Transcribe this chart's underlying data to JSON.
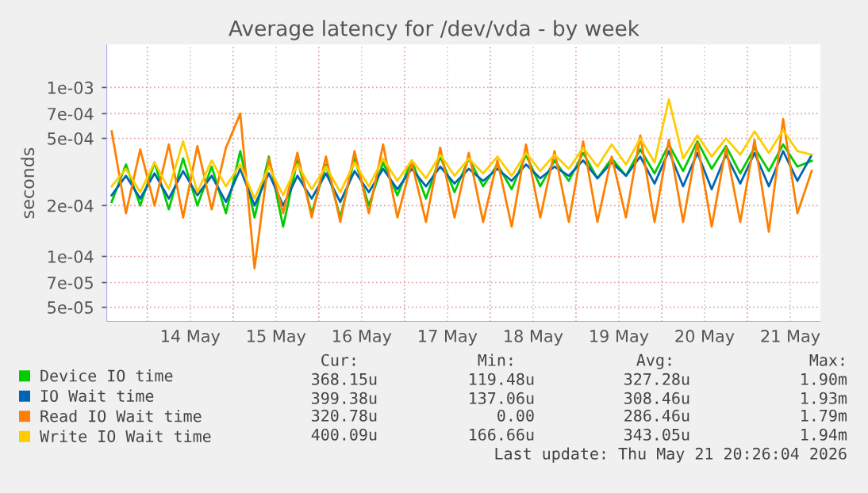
{
  "chart_data": {
    "type": "line",
    "title": "Average latency for /dev/vda - by week",
    "ylabel": "seconds",
    "x": [
      "2026-05-13T14:00",
      "2026-05-13T18:00",
      "2026-05-13T22:00",
      "2026-05-14T02:00",
      "2026-05-14T06:00",
      "2026-05-14T10:00",
      "2026-05-14T14:00",
      "2026-05-14T18:00",
      "2026-05-14T22:00",
      "2026-05-15T02:00",
      "2026-05-15T06:00",
      "2026-05-15T10:00",
      "2026-05-15T14:00",
      "2026-05-15T18:00",
      "2026-05-15T22:00",
      "2026-05-16T02:00",
      "2026-05-16T06:00",
      "2026-05-16T10:00",
      "2026-05-16T14:00",
      "2026-05-16T18:00",
      "2026-05-16T22:00",
      "2026-05-17T02:00",
      "2026-05-17T06:00",
      "2026-05-17T10:00",
      "2026-05-17T14:00",
      "2026-05-17T18:00",
      "2026-05-17T22:00",
      "2026-05-18T02:00",
      "2026-05-18T06:00",
      "2026-05-18T10:00",
      "2026-05-18T14:00",
      "2026-05-18T18:00",
      "2026-05-18T22:00",
      "2026-05-19T02:00",
      "2026-05-19T06:00",
      "2026-05-19T10:00",
      "2026-05-19T14:00",
      "2026-05-19T18:00",
      "2026-05-19T22:00",
      "2026-05-20T02:00",
      "2026-05-20T06:00",
      "2026-05-20T10:00",
      "2026-05-20T14:00",
      "2026-05-20T18:00",
      "2026-05-20T22:00",
      "2026-05-21T02:00",
      "2026-05-21T06:00",
      "2026-05-21T10:00",
      "2026-05-21T14:00",
      "2026-05-21T18:00"
    ],
    "series": [
      {
        "name": "Device IO time",
        "color": "#00cc00",
        "values": [
          0.00021,
          0.00035,
          0.0002,
          0.00036,
          0.00019,
          0.00038,
          0.0002,
          0.00034,
          0.00018,
          0.00042,
          0.00017,
          0.00039,
          0.00015,
          0.00037,
          0.00018,
          0.00035,
          0.00017,
          0.00038,
          0.0002,
          0.00036,
          0.00023,
          0.00037,
          0.00022,
          0.00039,
          0.00024,
          0.00038,
          0.00026,
          0.00035,
          0.00025,
          0.0004,
          0.00026,
          0.00037,
          0.00028,
          0.00041,
          0.00029,
          0.00038,
          0.0003,
          0.00043,
          0.00031,
          0.00046,
          0.00032,
          0.00048,
          0.00033,
          0.00045,
          0.00031,
          0.00044,
          0.00032,
          0.00046,
          0.00034,
          0.000368
        ]
      },
      {
        "name": "IO Wait time",
        "color": "#0066b3",
        "values": [
          0.00023,
          0.0003,
          0.00022,
          0.00031,
          0.00022,
          0.00032,
          0.00023,
          0.0003,
          0.00021,
          0.00033,
          0.0002,
          0.00031,
          0.0002,
          0.0003,
          0.00022,
          0.00031,
          0.00021,
          0.00032,
          0.00024,
          0.00033,
          0.00025,
          0.00033,
          0.00026,
          0.00034,
          0.00027,
          0.00033,
          0.00028,
          0.00033,
          0.00028,
          0.00035,
          0.00029,
          0.00034,
          0.0003,
          0.00037,
          0.00029,
          0.00036,
          0.0003,
          0.00039,
          0.00027,
          0.00042,
          0.00026,
          0.00041,
          0.00025,
          0.0004,
          0.00027,
          0.00041,
          0.00026,
          0.00042,
          0.00028,
          0.000399
        ]
      },
      {
        "name": "Read IO Wait time",
        "color": "#ff8000",
        "values": [
          0.00055,
          0.00018,
          0.00043,
          0.0002,
          0.00046,
          0.00017,
          0.00045,
          0.00019,
          0.00044,
          0.0007,
          8.5e-05,
          0.00038,
          0.00018,
          0.00041,
          0.00017,
          0.00039,
          0.00016,
          0.00042,
          0.00018,
          0.00046,
          0.00017,
          0.00036,
          0.00016,
          0.00044,
          0.00017,
          0.00041,
          0.00016,
          0.00037,
          0.00015,
          0.00046,
          0.00017,
          0.00042,
          0.00016,
          0.00048,
          0.00016,
          0.00039,
          0.00017,
          0.00052,
          0.00016,
          0.00049,
          0.00016,
          0.00047,
          0.00015,
          0.00044,
          0.00016,
          0.00049,
          0.00014,
          0.00065,
          0.00018,
          0.000321
        ]
      },
      {
        "name": "Write IO Wait time",
        "color": "#ffcc00",
        "values": [
          0.00026,
          0.00033,
          0.00024,
          0.00036,
          0.00025,
          0.00048,
          0.00024,
          0.00037,
          0.00026,
          0.00035,
          0.00022,
          0.00034,
          0.00023,
          0.00035,
          0.00025,
          0.00034,
          0.00024,
          0.00036,
          0.00026,
          0.00038,
          0.00028,
          0.00037,
          0.00029,
          0.0004,
          0.0003,
          0.00038,
          0.00031,
          0.00039,
          0.0003,
          0.00041,
          0.00032,
          0.0004,
          0.00033,
          0.00044,
          0.00034,
          0.00046,
          0.00035,
          0.0005,
          0.00036,
          0.00085,
          0.00038,
          0.00052,
          0.00039,
          0.0005,
          0.0004,
          0.00055,
          0.00041,
          0.00056,
          0.00042,
          0.0004
        ]
      }
    ],
    "log": "y",
    "ylim": [
      4.1e-05,
      0.0018
    ],
    "yticks": [
      {
        "value": 5e-05,
        "label": "5e-05"
      },
      {
        "value": 7e-05,
        "label": "7e-05"
      },
      {
        "value": 0.0001,
        "label": "1e-04"
      },
      {
        "value": 0.0002,
        "label": "2e-04"
      },
      {
        "value": 0.0005,
        "label": "5e-04"
      },
      {
        "value": 0.0007,
        "label": "7e-04"
      },
      {
        "value": 0.001,
        "label": "1e-03"
      }
    ],
    "xlim": [
      "2026-05-13T12:30",
      "2026-05-21T20:26"
    ],
    "xticks": [
      {
        "value": "2026-05-14T00:00",
        "label": null
      },
      {
        "value": "2026-05-14T12:00",
        "label": "14 May"
      },
      {
        "value": "2026-05-15T00:00",
        "label": null
      },
      {
        "value": "2026-05-15T12:00",
        "label": "15 May"
      },
      {
        "value": "2026-05-16T00:00",
        "label": null
      },
      {
        "value": "2026-05-16T12:00",
        "label": "16 May"
      },
      {
        "value": "2026-05-17T00:00",
        "label": null
      },
      {
        "value": "2026-05-17T12:00",
        "label": "17 May"
      },
      {
        "value": "2026-05-18T00:00",
        "label": null
      },
      {
        "value": "2026-05-18T12:00",
        "label": "18 May"
      },
      {
        "value": "2026-05-19T00:00",
        "label": null
      },
      {
        "value": "2026-05-19T12:00",
        "label": "19 May"
      },
      {
        "value": "2026-05-20T00:00",
        "label": null
      },
      {
        "value": "2026-05-20T12:00",
        "label": "20 May"
      },
      {
        "value": "2026-05-21T00:00",
        "label": null
      },
      {
        "value": "2026-05-21T12:00",
        "label": "21 May"
      }
    ],
    "grid": true,
    "legend": "bottom",
    "marker": "none",
    "line_style": "solid",
    "annotations": [
      "Cur:",
      "Min:",
      "Avg:",
      "Max:",
      "368.15u",
      "119.48u",
      "327.28u",
      "1.90m",
      "399.38u",
      "137.06u",
      "308.46u",
      "1.93m",
      "320.78u",
      "0.00",
      "286.46u",
      "1.79m",
      "400.09u",
      "166.66u",
      "343.05u",
      "1.94m",
      "Last update: Thu May 21 20:26:04 2026"
    ]
  }
}
